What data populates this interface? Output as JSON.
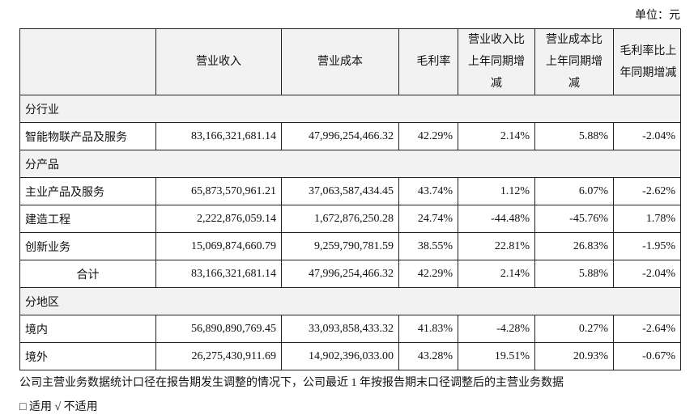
{
  "unit": "单位：元",
  "table": {
    "headers": [
      "营业收入",
      "营业成本",
      "毛利率",
      "营业收入比上年同期增减",
      "营业成本比上年同期增减",
      "毛利率比上年同期增减"
    ],
    "sections": [
      {
        "label": "分行业",
        "rows": [
          [
            "智能物联产品及服务",
            "83,166,321,681.14",
            "47,996,254,466.32",
            "42.29%",
            "2.14%",
            "5.88%",
            "-2.04%"
          ]
        ]
      },
      {
        "label": "分产品",
        "rows": [
          [
            "主业产品及服务",
            "65,873,570,961.21",
            "37,063,587,434.45",
            "43.74%",
            "1.12%",
            "6.07%",
            "-2.62%"
          ],
          [
            "建造工程",
            "2,222,876,059.14",
            "1,672,876,250.28",
            "24.74%",
            "-44.48%",
            "-45.76%",
            "1.78%"
          ],
          [
            "创新业务",
            "15,069,874,660.79",
            "9,259,790,781.59",
            "38.55%",
            "22.81%",
            "26.83%",
            "-1.95%"
          ],
          [
            "合计",
            "83,166,321,681.14",
            "47,996,254,466.32",
            "42.29%",
            "2.14%",
            "5.88%",
            "-2.04%"
          ]
        ]
      },
      {
        "label": "分地区",
        "rows": [
          [
            "境内",
            "56,890,890,769.45",
            "33,093,858,433.32",
            "41.83%",
            "-4.28%",
            "0.27%",
            "-2.64%"
          ],
          [
            "境外",
            "26,275,430,911.69",
            "14,902,396,033.00",
            "43.28%",
            "19.51%",
            "20.93%",
            "-0.67%"
          ]
        ]
      }
    ]
  },
  "note": "公司主营业务数据统计口径在报告期发生调整的情况下，公司最近 1 年按报告期末口径调整后的主营业务数据",
  "options": "□ 适用 √ 不适用"
}
